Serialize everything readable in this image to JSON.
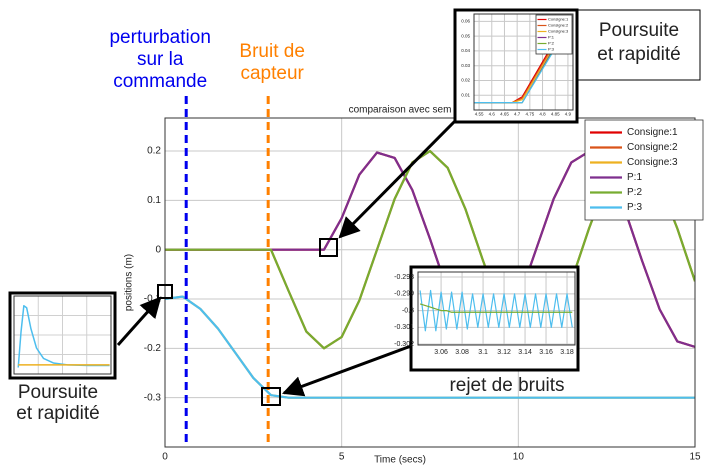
{
  "chart_data": [
    {
      "type": "line",
      "title": "comparaison avec sem",
      "xlabel": "Time (secs)",
      "ylabel": "positions (m)",
      "x": [
        0,
        0.5,
        1,
        1.5,
        2,
        2.5,
        3,
        3.5,
        4,
        4.5,
        5,
        5.5,
        6,
        6.5,
        7,
        7.5,
        8,
        8.5,
        9,
        9.5,
        10,
        10.5,
        11,
        11.5,
        12,
        12.5,
        13,
        13.5,
        14,
        14.5,
        15
      ],
      "series": [
        {
          "name": "Consigne:1",
          "color": "#e00000",
          "values": [
            0,
            0,
            0,
            0,
            0,
            0,
            0,
            0,
            0,
            0,
            0.064,
            0.152,
            0.197,
            0.186,
            0.121,
            0.022,
            -0.084,
            -0.165,
            -0.199,
            -0.177,
            -0.103,
            0,
            0.103,
            0.177,
            0.199,
            0.165,
            0.084,
            -0.022,
            -0.121,
            -0.186,
            -0.197
          ]
        },
        {
          "name": "Consigne:2",
          "color": "#d95319",
          "values": [
            0,
            0,
            0,
            0,
            0,
            0,
            0,
            -0.084,
            -0.166,
            -0.2,
            -0.177,
            -0.103,
            0,
            0.103,
            0.177,
            0.2,
            0.166,
            0.083,
            -0.022,
            -0.121,
            -0.186,
            -0.197,
            -0.151,
            -0.064,
            0.043,
            0.138,
            0.193,
            0.192,
            0.134,
            0.043,
            -0.064
          ]
        },
        {
          "name": "Consigne:3",
          "color": "#edb120",
          "values": [
            -0.1,
            -0.095,
            -0.12,
            -0.16,
            -0.21,
            -0.26,
            -0.295,
            -0.3,
            -0.3,
            -0.3,
            -0.3,
            -0.3,
            -0.3,
            -0.3,
            -0.3,
            -0.3,
            -0.3,
            -0.3,
            -0.3,
            -0.3,
            -0.3,
            -0.3,
            -0.3,
            -0.3,
            -0.3,
            -0.3,
            -0.3,
            -0.3,
            -0.3,
            -0.3,
            -0.3
          ]
        },
        {
          "name": "P:1",
          "color": "#7e2f8e",
          "values": [
            0,
            0,
            0,
            0,
            0,
            0,
            0,
            0,
            0,
            0,
            0.064,
            0.152,
            0.197,
            0.186,
            0.121,
            0.022,
            -0.084,
            -0.165,
            -0.199,
            -0.177,
            -0.103,
            0,
            0.103,
            0.177,
            0.199,
            0.165,
            0.084,
            -0.022,
            -0.121,
            -0.186,
            -0.197
          ]
        },
        {
          "name": "P:2",
          "color": "#77ac30",
          "values": [
            0,
            0,
            0,
            0,
            0,
            0,
            0,
            -0.084,
            -0.166,
            -0.2,
            -0.177,
            -0.103,
            0,
            0.103,
            0.177,
            0.2,
            0.166,
            0.083,
            -0.022,
            -0.121,
            -0.186,
            -0.197,
            -0.151,
            -0.064,
            0.043,
            0.138,
            0.193,
            0.192,
            0.134,
            0.043,
            -0.064
          ]
        },
        {
          "name": "P:3",
          "color": "#4dbeee",
          "values": [
            -0.1,
            -0.095,
            -0.12,
            -0.16,
            -0.21,
            -0.26,
            -0.295,
            -0.3,
            -0.3,
            -0.3,
            -0.3,
            -0.3,
            -0.3,
            -0.3,
            -0.3,
            -0.3,
            -0.3,
            -0.3,
            -0.3,
            -0.3,
            -0.3,
            -0.3,
            -0.3,
            -0.3,
            -0.3,
            -0.3,
            -0.3,
            -0.3,
            -0.3,
            -0.3,
            -0.3
          ]
        }
      ],
      "xlim": [
        0,
        15
      ],
      "ylim": [
        -0.4,
        0.267
      ],
      "xticks": [
        0,
        5,
        10,
        15
      ],
      "yticks": [
        -0.3,
        -0.2,
        -0.1,
        0,
        0.1,
        0.2
      ],
      "grid": true,
      "legend": "upper right",
      "markers": [
        {
          "label": [
            "perturbation",
            "sur la",
            "commande"
          ],
          "x": 0.6,
          "color": "#0000ee"
        },
        {
          "label": [
            "Bruit de",
            "capteur"
          ],
          "x": 2.92,
          "color": "#ff8000"
        }
      ]
    },
    {
      "type": "line",
      "x": [
        4.53,
        4.68,
        4.72,
        4.9
      ],
      "series": [
        {
          "name": "Consigne:1",
          "color": "#e00000",
          "values": [
            0.005,
            0.005,
            0.009,
            0.062
          ]
        },
        {
          "name": "Consigne:2",
          "color": "#d95319",
          "values": [
            0.005,
            0.005,
            0.008,
            0.06
          ]
        },
        {
          "name": "Consigne:3",
          "color": "#edb120",
          "values": [
            0.005,
            0.005,
            0.007,
            0.059
          ]
        },
        {
          "name": "P:1",
          "color": "#7e2f8e",
          "values": [
            0.005,
            0.005,
            0.005,
            0.058
          ]
        },
        {
          "name": "P:2",
          "color": "#77ac30",
          "values": [
            0.005,
            0.005,
            0.005,
            0.057
          ]
        },
        {
          "name": "P:3",
          "color": "#4dbeee",
          "values": [
            0.005,
            0.005,
            0.005,
            0.056
          ]
        }
      ],
      "xlim": [
        4.53,
        4.92
      ],
      "ylim": [
        0,
        0.065
      ],
      "xticks": [
        4.55,
        4.6,
        4.65,
        4.7,
        4.75,
        4.8,
        4.85,
        4.9
      ],
      "yticks": [
        0.01,
        0.02,
        0.03,
        0.04,
        0.05,
        0.06
      ],
      "grid": true,
      "legend": "upper right"
    },
    {
      "type": "line",
      "x": [
        3.04,
        3.045,
        3.05,
        3.055,
        3.06,
        3.065,
        3.07,
        3.075,
        3.08,
        3.085,
        3.09,
        3.095,
        3.1,
        3.105,
        3.11,
        3.115,
        3.12,
        3.125,
        3.13,
        3.135,
        3.14,
        3.145,
        3.15,
        3.155,
        3.16,
        3.165,
        3.17,
        3.175,
        3.18,
        3.185
      ],
      "series": [
        {
          "color": "#4dbeee",
          "values": [
            -0.2988,
            -0.3012,
            -0.2988,
            -0.3012,
            -0.2989,
            -0.3011,
            -0.2989,
            -0.3011,
            -0.2989,
            -0.3011,
            -0.299,
            -0.301,
            -0.299,
            -0.301,
            -0.299,
            -0.301,
            -0.299,
            -0.301,
            -0.299,
            -0.301,
            -0.299,
            -0.301,
            -0.299,
            -0.301,
            -0.299,
            -0.301,
            -0.299,
            -0.301,
            -0.299,
            -0.301
          ]
        },
        {
          "color": "#77ac30",
          "values": [
            -0.2996,
            -0.2997,
            -0.2998,
            -0.2999,
            -0.3,
            -0.3,
            -0.3001,
            -0.3001,
            -0.3001,
            -0.3001,
            -0.3001,
            -0.3001,
            -0.3001,
            -0.3001,
            -0.3001,
            -0.3001,
            -0.3001,
            -0.3001,
            -0.3001,
            -0.3001,
            -0.3001,
            -0.3001,
            -0.3001,
            -0.3001,
            -0.3001,
            -0.3001,
            -0.3001,
            -0.3001,
            -0.3001,
            -0.3001
          ]
        }
      ],
      "xlim": [
        3.038,
        3.1876
      ],
      "ylim": [
        -0.30205,
        -0.2977
      ],
      "xticks": [
        3.06,
        3.08,
        3.1,
        3.12,
        3.14,
        3.16,
        3.18
      ],
      "yticks": [
        -0.298,
        -0.299,
        -0.3,
        -0.301,
        -0.302
      ],
      "grid": true
    },
    {
      "type": "line",
      "x": [
        0,
        0.2,
        0.4,
        0.6,
        0.9,
        1.3,
        1.8,
        2.5,
        3.5,
        5,
        6.5
      ],
      "series": [
        {
          "color": "#4dbeee",
          "values": [
            0,
            0.55,
            0.95,
            0.92,
            0.6,
            0.3,
            0.14,
            0.07,
            0.04,
            0.03,
            0.03
          ]
        },
        {
          "color": "#edb120",
          "values": [
            0.04,
            0.04,
            0.04,
            0.04,
            0.04,
            0.04,
            0.04,
            0.04,
            0.04,
            0.04,
            0.04
          ]
        }
      ],
      "xlim": [
        -0.3,
        6.6
      ],
      "ylim": [
        -0.1,
        1.1
      ],
      "xticks": [],
      "yticks": [],
      "grid": true
    }
  ],
  "callouts": {
    "top_right": [
      "Poursuite",
      "et rapidité"
    ],
    "bottom_left": [
      "Poursuite",
      "et rapidité"
    ],
    "noise": "rejet de bruits"
  }
}
